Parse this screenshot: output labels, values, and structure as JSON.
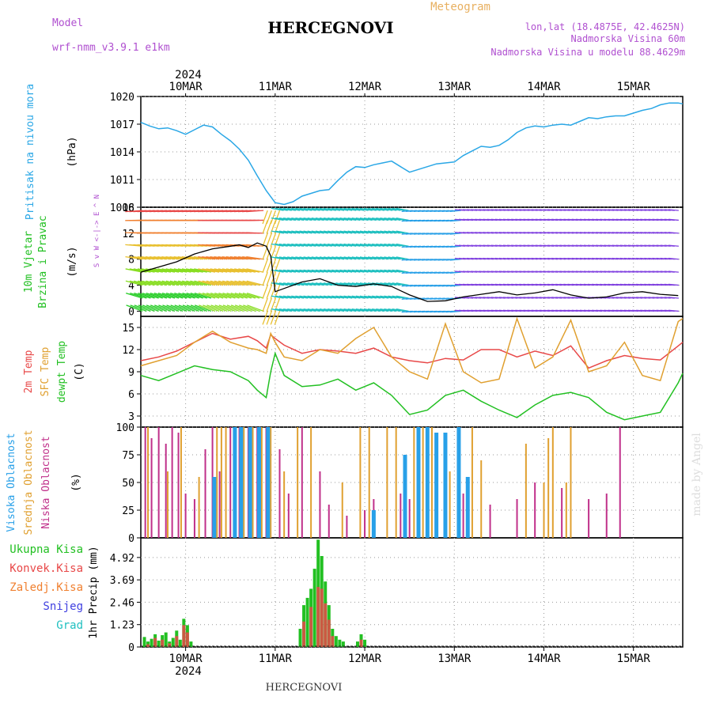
{
  "header": {
    "model_label": "Model",
    "model_name": "wrf-nmm_v3.9.1  e1km",
    "title": "HERCEGNOVI",
    "meteogram": "Meteogram",
    "lonlat": "lon,lat (18.4875E, 42.4625N)",
    "alt": "Nadmorska Visina 60m",
    "alt_model": "Nadmorska Visina u modelu 88.4629m",
    "footer_title": "HERCEGNOVI",
    "year": "2024",
    "watermark": "made by Angel"
  },
  "colors": {
    "pressure": "#2aa7e6",
    "t2m": "#e84848",
    "tsfc": "#e0a030",
    "dew": "#22c022",
    "high": "#28a0e8",
    "mid": "#e0a030",
    "low": "#c0308a",
    "total": "#22c022",
    "conv": "#e84848",
    "strat": "#f08030",
    "snow": "#4040e0",
    "grad": "#20c0c0",
    "purple": "#b050d0"
  },
  "chart_data": [
    {
      "type": "line",
      "id": "pressure",
      "ylabel_lines": [
        "Pritisak na nivou mora",
        "(hPa)"
      ],
      "xlim": [
        0,
        6.05
      ],
      "ylim": [
        1008,
        1020
      ],
      "yticks": [
        1008,
        1011,
        1014,
        1017,
        1020
      ],
      "x_categories": [
        "10MAR",
        "11MAR",
        "12MAR",
        "13MAR",
        "14MAR",
        "15MAR"
      ],
      "series": [
        {
          "key": "pressure",
          "x": [
            0.0,
            0.1,
            0.2,
            0.3,
            0.4,
            0.5,
            0.6,
            0.7,
            0.8,
            0.9,
            1.0,
            1.1,
            1.2,
            1.3,
            1.4,
            1.5,
            1.6,
            1.7,
            1.8,
            1.9,
            2.0,
            2.1,
            2.2,
            2.3,
            2.4,
            2.5,
            2.6,
            2.7,
            2.8,
            2.9,
            3.0,
            3.1,
            3.2,
            3.3,
            3.4,
            3.5,
            3.6,
            3.7,
            3.8,
            3.9,
            4.0,
            4.1,
            4.2,
            4.3,
            4.4,
            4.5,
            4.6,
            4.7,
            4.8,
            4.9,
            5.0,
            5.1,
            5.2,
            5.3,
            5.4,
            5.5,
            5.6,
            5.7,
            5.8,
            5.9,
            6.0,
            6.05
          ],
          "values": [
            1017.2,
            1016.8,
            1016.5,
            1016.6,
            1016.3,
            1015.9,
            1016.4,
            1016.9,
            1016.7,
            1015.9,
            1015.2,
            1014.3,
            1013.1,
            1011.4,
            1009.8,
            1008.5,
            1008.3,
            1008.6,
            1009.2,
            1009.5,
            1009.8,
            1009.9,
            1010.9,
            1011.8,
            1012.4,
            1012.3,
            1012.6,
            1012.8,
            1013.0,
            1012.4,
            1011.8,
            1012.1,
            1012.4,
            1012.7,
            1012.8,
            1012.9,
            1013.6,
            1014.1,
            1014.6,
            1014.5,
            1014.7,
            1015.3,
            1016.1,
            1016.6,
            1016.8,
            1016.7,
            1016.9,
            1017.0,
            1016.9,
            1017.3,
            1017.7,
            1017.6,
            1017.8,
            1017.9,
            1017.9,
            1018.2,
            1018.5,
            1018.7,
            1019.1,
            1019.3,
            1019.3,
            1019.2
          ]
        }
      ]
    },
    {
      "type": "scatter",
      "id": "wind",
      "ylabel_lines": [
        "10m Vjetar",
        "Brzina i Pravac",
        "(m/s)"
      ],
      "compass_lines": [
        "N",
        "^",
        "W <-|-> E",
        "v",
        "S"
      ],
      "xlim": [
        0,
        6.05
      ],
      "ylim": [
        -0.8,
        16
      ],
      "yticks": [
        0,
        4,
        8,
        12,
        16
      ],
      "series": [
        {
          "key": "wind",
          "x": [
            0.0,
            0.2,
            0.4,
            0.6,
            0.8,
            1.0,
            1.1,
            1.2,
            1.3,
            1.4,
            1.45,
            1.5,
            1.6,
            1.8,
            2.0,
            2.2,
            2.4,
            2.6,
            2.8,
            3.0,
            3.2,
            3.4,
            3.6,
            3.8,
            4.0,
            4.2,
            4.4,
            4.6,
            4.8,
            5.0,
            5.2,
            5.4,
            5.6,
            5.8,
            6.0
          ],
          "values": [
            6.0,
            6.8,
            7.6,
            8.8,
            9.6,
            10.0,
            10.2,
            9.8,
            10.5,
            10.0,
            8.5,
            3.0,
            3.5,
            4.5,
            5.0,
            4.0,
            3.8,
            4.2,
            3.8,
            2.5,
            1.5,
            1.6,
            2.2,
            2.6,
            3.0,
            2.5,
            2.8,
            3.3,
            2.5,
            2.0,
            2.2,
            2.8,
            3.0,
            2.6,
            2.4
          ]
        }
      ]
    },
    {
      "type": "line",
      "id": "temperature",
      "ylabel_lines": [
        "2m Temp",
        "SFC Temp",
        "dewpt Temp",
        "(C)"
      ],
      "xlim": [
        0,
        6.05
      ],
      "ylim": [
        1.5,
        16.5
      ],
      "yticks": [
        3,
        6,
        9,
        12,
        15
      ],
      "series": [
        {
          "key": "t2m",
          "x": [
            0.0,
            0.2,
            0.4,
            0.6,
            0.8,
            1.0,
            1.2,
            1.3,
            1.4,
            1.45,
            1.5,
            1.6,
            1.8,
            2.0,
            2.2,
            2.4,
            2.6,
            2.8,
            3.0,
            3.2,
            3.4,
            3.6,
            3.8,
            4.0,
            4.2,
            4.4,
            4.6,
            4.8,
            5.0,
            5.2,
            5.4,
            5.6,
            5.8,
            6.0,
            6.05
          ],
          "values": [
            10.5,
            11.0,
            11.8,
            13.0,
            14.2,
            13.4,
            13.8,
            13.2,
            12.2,
            14.0,
            13.5,
            12.6,
            11.5,
            12.0,
            11.8,
            11.5,
            12.2,
            11.0,
            10.5,
            10.2,
            10.8,
            10.6,
            12.0,
            12.0,
            11.0,
            11.8,
            11.2,
            12.5,
            9.5,
            10.5,
            11.2,
            10.8,
            10.6,
            12.5,
            13.0
          ]
        },
        {
          "key": "tsfc",
          "x": [
            0.0,
            0.2,
            0.4,
            0.6,
            0.8,
            1.0,
            1.2,
            1.3,
            1.4,
            1.45,
            1.5,
            1.6,
            1.8,
            2.0,
            2.2,
            2.4,
            2.6,
            2.8,
            3.0,
            3.2,
            3.4,
            3.6,
            3.8,
            4.0,
            4.2,
            4.4,
            4.6,
            4.8,
            5.0,
            5.2,
            5.4,
            5.6,
            5.8,
            6.0,
            6.05
          ],
          "values": [
            9.8,
            10.5,
            11.2,
            13.0,
            14.5,
            13.0,
            12.2,
            12.0,
            11.5,
            14.2,
            13.0,
            11.0,
            10.5,
            12.0,
            11.5,
            13.5,
            15.0,
            11.0,
            9.0,
            8.0,
            15.5,
            9.0,
            7.5,
            8.0,
            16.2,
            9.5,
            11.0,
            16.0,
            9.0,
            9.8,
            13.0,
            8.5,
            7.8,
            15.8,
            16.2
          ]
        },
        {
          "key": "dew",
          "x": [
            0.0,
            0.2,
            0.4,
            0.6,
            0.8,
            1.0,
            1.2,
            1.3,
            1.4,
            1.45,
            1.5,
            1.6,
            1.8,
            2.0,
            2.2,
            2.4,
            2.6,
            2.8,
            3.0,
            3.2,
            3.4,
            3.6,
            3.8,
            4.0,
            4.2,
            4.4,
            4.6,
            4.8,
            5.0,
            5.2,
            5.4,
            5.6,
            5.8,
            6.0,
            6.05
          ],
          "values": [
            8.5,
            7.8,
            8.8,
            9.8,
            9.3,
            9.0,
            7.8,
            6.5,
            5.5,
            9.0,
            11.5,
            8.5,
            7.0,
            7.2,
            8.0,
            6.5,
            7.5,
            5.8,
            3.2,
            3.8,
            5.8,
            6.5,
            5.0,
            3.8,
            2.8,
            4.5,
            5.8,
            6.2,
            5.5,
            3.5,
            2.5,
            3.0,
            3.5,
            7.5,
            8.8
          ]
        }
      ]
    },
    {
      "type": "bar",
      "id": "clouds",
      "ylabel_lines": [
        "Visoka Oblacnost",
        "Srednja Oblacnost",
        "Niska Oblacnost",
        "(%)"
      ],
      "xlim": [
        0,
        6.05
      ],
      "ylim": [
        0,
        100
      ],
      "yticks": [
        0,
        25,
        50,
        75,
        100
      ],
      "series": [
        {
          "key": "low",
          "x": [
            0.05,
            0.12,
            0.2,
            0.28,
            0.35,
            0.42,
            0.5,
            0.6,
            0.72,
            0.8,
            0.88,
            1.0,
            1.1,
            1.2,
            1.3,
            1.4,
            1.55,
            1.65,
            1.8,
            2.0,
            2.1,
            2.3,
            2.5,
            2.6,
            2.9,
            3.0,
            3.3,
            3.6,
            3.9,
            4.2,
            4.4,
            4.7,
            5.0,
            5.2,
            5.35
          ],
          "values": [
            100,
            90,
            100,
            85,
            100,
            95,
            40,
            35,
            80,
            100,
            60,
            100,
            100,
            100,
            100,
            100,
            80,
            40,
            100,
            60,
            30,
            20,
            25,
            35,
            40,
            35,
            25,
            40,
            30,
            35,
            50,
            45,
            35,
            40,
            100
          ]
        },
        {
          "key": "mid",
          "x": [
            0.08,
            0.3,
            0.45,
            0.65,
            0.85,
            0.9,
            0.95,
            1.05,
            1.15,
            1.25,
            1.35,
            1.45,
            1.6,
            1.75,
            1.9,
            2.25,
            2.45,
            2.55,
            2.75,
            2.85,
            3.05,
            3.15,
            3.25,
            3.45,
            3.55,
            3.7,
            3.8,
            4.3,
            4.5,
            4.55,
            4.6,
            4.75,
            4.8
          ],
          "values": [
            100,
            60,
            100,
            55,
            100,
            100,
            100,
            100,
            100,
            100,
            100,
            100,
            60,
            100,
            100,
            50,
            100,
            100,
            100,
            100,
            100,
            100,
            100,
            60,
            100,
            100,
            70,
            85,
            50,
            90,
            100,
            50,
            100
          ]
        },
        {
          "key": "high",
          "x": [
            0.82,
            1.05,
            1.12,
            1.22,
            1.32,
            1.42,
            2.6,
            2.95,
            3.1,
            3.2,
            3.3,
            3.4,
            3.55,
            3.65
          ],
          "values": [
            55,
            100,
            100,
            100,
            100,
            100,
            25,
            75,
            100,
            100,
            95,
            95,
            100,
            55
          ]
        }
      ]
    },
    {
      "type": "bar",
      "id": "precip",
      "ylabel_lines": [
        "1hr Precip (mm)"
      ],
      "legend": [
        "Ukupna Kisa",
        "Konvek.Kisa",
        "Zaledj.Kisa",
        "Snijeg",
        "Grad"
      ],
      "xlim": [
        0,
        6.05
      ],
      "ylim": [
        0,
        6.0
      ],
      "yticks": [
        0,
        1.23,
        2.46,
        3.69,
        4.92
      ],
      "series": [
        {
          "key": "total",
          "x": [
            0.04,
            0.08,
            0.12,
            0.16,
            0.2,
            0.24,
            0.28,
            0.32,
            0.36,
            0.4,
            0.44,
            0.48,
            0.52,
            0.56,
            1.78,
            1.82,
            1.86,
            1.9,
            1.94,
            1.98,
            2.02,
            2.06,
            2.1,
            2.14,
            2.18,
            2.22,
            2.26,
            2.42,
            2.46,
            2.5
          ],
          "values": [
            0.55,
            0.3,
            0.45,
            0.7,
            0.35,
            0.65,
            0.8,
            0.3,
            0.5,
            0.9,
            0.4,
            1.55,
            1.2,
            0.3,
            1.0,
            2.3,
            2.7,
            3.2,
            4.3,
            5.9,
            5.0,
            3.6,
            2.3,
            1.0,
            0.6,
            0.4,
            0.3,
            0.3,
            0.7,
            0.4
          ]
        },
        {
          "key": "conv",
          "x": [
            0.08,
            0.16,
            0.24,
            0.32,
            0.4,
            0.48,
            0.52,
            1.82,
            1.9,
            1.98,
            2.02,
            2.06,
            2.1,
            2.14,
            2.46
          ],
          "values": [
            0.15,
            0.5,
            0.4,
            0.2,
            0.6,
            1.2,
            0.8,
            1.4,
            2.2,
            3.3,
            3.2,
            2.4,
            1.5,
            0.6,
            0.4
          ]
        }
      ]
    }
  ]
}
